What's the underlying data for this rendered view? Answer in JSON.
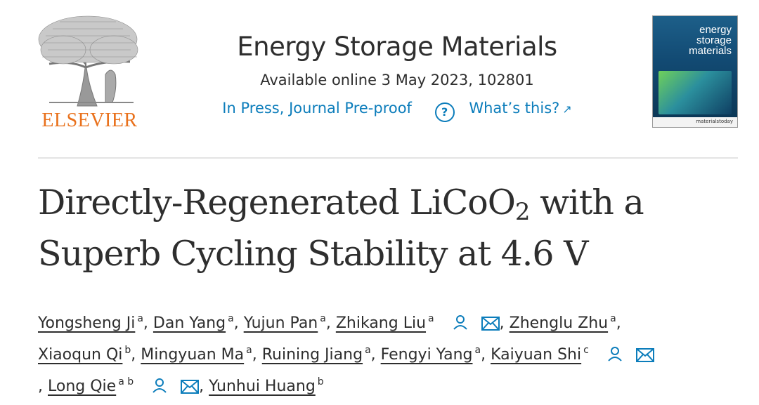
{
  "publisher": {
    "name": "ELSEVIER",
    "brand_color": "#e9711c"
  },
  "journal": {
    "title": "Energy Storage Materials",
    "availability": "Available online 3 May 2023, 102801",
    "status_link": "In Press, Journal Pre-proof",
    "help_link": "What’s this?",
    "help_icon": "question-circle-icon",
    "external_icon": "↗",
    "link_color": "#0c7dbb"
  },
  "cover": {
    "title_line1": "energy",
    "title_line2": "storage",
    "title_line3": "materials",
    "imprint": "materialstoday"
  },
  "article": {
    "title_part1": "Directly-Regenerated LiCoO",
    "title_subscript": "2",
    "title_part2": " with a",
    "title_line2": "Superb Cycling Stability at 4.6 V"
  },
  "authors": {
    "list": [
      {
        "name": "Yongsheng Ji",
        "aff": "a"
      },
      {
        "name": "Dan Yang",
        "aff": "a"
      },
      {
        "name": "Yujun Pan",
        "aff": "a"
      },
      {
        "name": "Zhikang Liu",
        "aff": "a"
      },
      {
        "name": "Zhenglu Zhu",
        "aff": "a"
      },
      {
        "name": "Xiaoqun Qi",
        "aff": "b"
      },
      {
        "name": "Mingyuan Ma",
        "aff": "a"
      },
      {
        "name": "Ruining Jiang",
        "aff": "a"
      },
      {
        "name": "Fengyi Yang",
        "aff": "a"
      },
      {
        "name": "Kaiyuan Shi",
        "aff": "c"
      },
      {
        "name": "Long Qie",
        "aff": "a b"
      },
      {
        "name": "Yunhui Huang",
        "aff": "b"
      }
    ],
    "separator": ", ",
    "leading_separator": ", ",
    "person_icon": "person-icon",
    "mail_icon": "envelope-icon"
  }
}
